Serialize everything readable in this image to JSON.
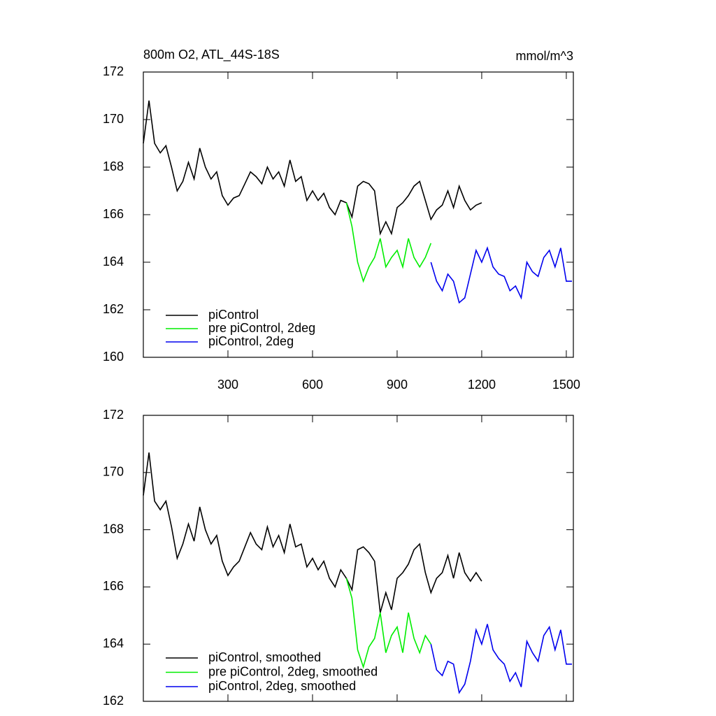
{
  "chart_data": [
    {
      "type": "line",
      "title": "800m O2, ATL_44S-18S",
      "units": "mmol/m^3",
      "xlim": [
        0,
        1525
      ],
      "ylim": [
        160,
        172
      ],
      "xticks": [
        300,
        600,
        900,
        1200,
        1500
      ],
      "yticks": [
        160,
        162,
        164,
        166,
        168,
        170,
        172
      ],
      "series": [
        {
          "name": "piControl",
          "color": "#000000",
          "x": [
            0,
            20,
            40,
            60,
            80,
            100,
            120,
            140,
            160,
            180,
            200,
            220,
            240,
            260,
            280,
            300,
            320,
            340,
            360,
            380,
            400,
            420,
            440,
            460,
            480,
            500,
            520,
            540,
            560,
            580,
            600,
            620,
            640,
            660,
            680,
            700,
            720,
            740,
            760,
            780,
            800,
            820,
            840,
            860,
            880,
            900,
            920,
            940,
            960,
            980,
            1000,
            1020,
            1040,
            1060,
            1080,
            1100,
            1120,
            1140,
            1160,
            1180,
            1200
          ],
          "values": [
            169.0,
            170.8,
            169.0,
            168.6,
            168.9,
            168.0,
            167.0,
            167.4,
            168.2,
            167.5,
            168.8,
            168.0,
            167.5,
            167.8,
            166.8,
            166.4,
            166.7,
            166.8,
            167.3,
            167.8,
            167.6,
            167.3,
            168.0,
            167.5,
            167.8,
            167.2,
            168.3,
            167.4,
            167.6,
            166.6,
            167.0,
            166.6,
            166.9,
            166.3,
            166.0,
            166.6,
            166.5,
            165.9,
            167.2,
            167.4,
            167.3,
            167.0,
            165.2,
            165.7,
            165.2,
            166.3,
            166.5,
            166.8,
            167.2,
            167.4,
            166.6,
            165.8,
            166.2,
            166.4,
            167.0,
            166.3,
            167.2,
            166.6,
            166.2,
            166.4,
            166.5
          ]
        },
        {
          "name": "pre piControl, 2deg",
          "color": "#00ee00",
          "x": [
            720,
            740,
            760,
            780,
            800,
            820,
            840,
            860,
            880,
            900,
            920,
            940,
            960,
            980,
            1000,
            1020
          ],
          "values": [
            166.5,
            165.5,
            164.0,
            163.2,
            163.8,
            164.2,
            165.0,
            163.8,
            164.2,
            164.5,
            163.8,
            165.0,
            164.2,
            163.8,
            164.2,
            164.8
          ]
        },
        {
          "name": "piControl, 2deg",
          "color": "#0000ee",
          "x": [
            1020,
            1040,
            1060,
            1080,
            1100,
            1120,
            1140,
            1160,
            1180,
            1200,
            1220,
            1240,
            1260,
            1280,
            1300,
            1320,
            1340,
            1360,
            1380,
            1400,
            1420,
            1440,
            1460,
            1480,
            1500,
            1520
          ],
          "values": [
            164.0,
            163.2,
            162.8,
            163.5,
            163.2,
            162.3,
            162.5,
            163.5,
            164.5,
            164.0,
            164.6,
            163.8,
            163.5,
            163.4,
            162.8,
            163.0,
            162.5,
            164.0,
            163.6,
            163.4,
            164.2,
            164.5,
            163.8,
            164.6,
            163.2,
            163.2
          ]
        }
      ]
    },
    {
      "type": "line",
      "xlim": [
        0,
        1525
      ],
      "ylim": [
        162,
        172
      ],
      "xticks": [
        300,
        600,
        900,
        1200,
        1500
      ],
      "yticks": [
        162,
        164,
        166,
        168,
        170,
        172
      ],
      "series": [
        {
          "name": "piControl, smoothed",
          "color": "#000000",
          "x": [
            0,
            20,
            40,
            60,
            80,
            100,
            120,
            140,
            160,
            180,
            200,
            220,
            240,
            260,
            280,
            300,
            320,
            340,
            360,
            380,
            400,
            420,
            440,
            460,
            480,
            500,
            520,
            540,
            560,
            580,
            600,
            620,
            640,
            660,
            680,
            700,
            720,
            740,
            760,
            780,
            800,
            820,
            840,
            860,
            880,
            900,
            920,
            940,
            960,
            980,
            1000,
            1020,
            1040,
            1060,
            1080,
            1100,
            1120,
            1140,
            1160,
            1180,
            1200
          ],
          "values": [
            169.2,
            170.7,
            169.0,
            168.7,
            169.0,
            168.1,
            167.0,
            167.5,
            168.2,
            167.6,
            168.8,
            168.0,
            167.5,
            167.8,
            166.9,
            166.4,
            166.7,
            166.9,
            167.4,
            167.9,
            167.5,
            167.3,
            168.1,
            167.4,
            167.8,
            167.2,
            168.2,
            167.4,
            167.5,
            166.7,
            167.0,
            166.6,
            166.9,
            166.3,
            166.0,
            166.6,
            166.3,
            165.9,
            167.3,
            167.4,
            167.2,
            166.9,
            165.1,
            165.8,
            165.2,
            166.3,
            166.5,
            166.8,
            167.3,
            167.5,
            166.5,
            165.8,
            166.3,
            166.5,
            167.1,
            166.3,
            167.2,
            166.5,
            166.2,
            166.5,
            166.2
          ]
        },
        {
          "name": "pre piControl, 2deg, smoothed",
          "color": "#00ee00",
          "x": [
            720,
            740,
            760,
            780,
            800,
            820,
            840,
            860,
            880,
            900,
            920,
            940,
            960,
            980,
            1000,
            1020
          ],
          "values": [
            166.3,
            165.6,
            163.8,
            163.2,
            163.9,
            164.2,
            165.1,
            163.7,
            164.3,
            164.6,
            163.7,
            165.1,
            164.2,
            163.7,
            164.3,
            164.0
          ]
        },
        {
          "name": "piControl, 2deg, smoothed",
          "color": "#0000ee",
          "x": [
            1020,
            1040,
            1060,
            1080,
            1100,
            1120,
            1140,
            1160,
            1180,
            1200,
            1220,
            1240,
            1260,
            1280,
            1300,
            1320,
            1340,
            1360,
            1380,
            1400,
            1420,
            1440,
            1460,
            1480,
            1500,
            1520
          ],
          "values": [
            164.0,
            163.1,
            162.9,
            163.4,
            163.3,
            162.3,
            162.6,
            163.4,
            164.5,
            164.0,
            164.7,
            163.8,
            163.5,
            163.3,
            162.7,
            163.0,
            162.5,
            164.1,
            163.7,
            163.4,
            164.3,
            164.6,
            163.8,
            164.5,
            163.3,
            163.3
          ]
        }
      ]
    }
  ]
}
